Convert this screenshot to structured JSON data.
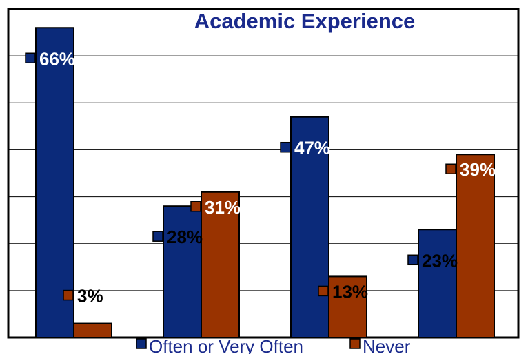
{
  "chart_data": {
    "type": "bar",
    "title": "Academic Experience",
    "categories": [
      "",
      "",
      "",
      ""
    ],
    "series": [
      {
        "name": "Often or Very Often",
        "values": [
          66,
          28,
          47,
          23
        ],
        "labels": [
          "66%",
          "28%",
          "47%",
          "23%"
        ],
        "color": "#0b2a7a"
      },
      {
        "name": "Never",
        "values": [
          3,
          31,
          13,
          39
        ],
        "labels": [
          "3%",
          "31%",
          "13%",
          "39%"
        ],
        "color": "#993300"
      }
    ],
    "ylim": [
      0,
      70
    ],
    "grid": true,
    "legend": "bottom"
  }
}
